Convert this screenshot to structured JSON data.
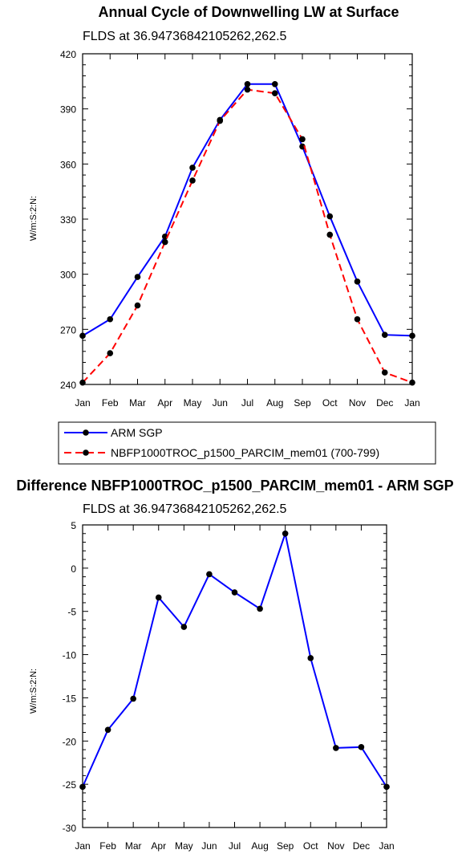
{
  "chart_data": [
    {
      "type": "line",
      "title": "Annual Cycle of Downwelling LW at Surface",
      "subtitle": "FLDS at 36.94736842105262,262.5",
      "xlabel": "",
      "ylabel": "W/m:S:2:N:",
      "categories": [
        "Jan",
        "Feb",
        "Mar",
        "Apr",
        "May",
        "Jun",
        "Jul",
        "Aug",
        "Sep",
        "Oct",
        "Nov",
        "Dec",
        "Jan"
      ],
      "ylim": [
        240,
        420
      ],
      "yticks": [
        "240",
        "270",
        "300",
        "330",
        "360",
        "390",
        "420"
      ],
      "legend_position": "below",
      "series": [
        {
          "name": "ARM SGP",
          "color": "#0000ff",
          "dashed": false,
          "values": [
            266.5,
            275.5,
            298.5,
            320.5,
            358,
            384,
            403.5,
            403.5,
            369.5,
            331.5,
            296,
            267,
            266.5
          ]
        },
        {
          "name": "NBFP1000TROC_p1500_PARCIM_mem01 (700-799)",
          "color": "#ff0000",
          "dashed": true,
          "values": [
            241,
            257,
            283,
            317.5,
            351,
            383.5,
            400.5,
            398.5,
            373.5,
            321.5,
            275.5,
            246.5,
            241
          ]
        }
      ]
    },
    {
      "type": "line",
      "title": "Difference NBFP1000TROC_p1500_PARCIM_mem01 - ARM SGP",
      "subtitle": "FLDS at 36.94736842105262,262.5",
      "xlabel": "",
      "ylabel": "W/m:S:2:N:",
      "categories": [
        "Jan",
        "Feb",
        "Mar",
        "Apr",
        "May",
        "Jun",
        "Jul",
        "Aug",
        "Sep",
        "Oct",
        "Nov",
        "Dec",
        "Jan"
      ],
      "ylim": [
        -30,
        5
      ],
      "yticks": [
        "-30",
        "-25",
        "-20",
        "-15",
        "-10",
        "-5",
        "0",
        "5"
      ],
      "series": [
        {
          "name": "",
          "color": "#0000ff",
          "dashed": false,
          "values": [
            -25.3,
            -18.7,
            -15.1,
            -3.4,
            -6.8,
            -0.7,
            -2.8,
            -4.7,
            4.0,
            -10.4,
            -20.8,
            -20.7,
            -25.3
          ]
        }
      ]
    }
  ]
}
